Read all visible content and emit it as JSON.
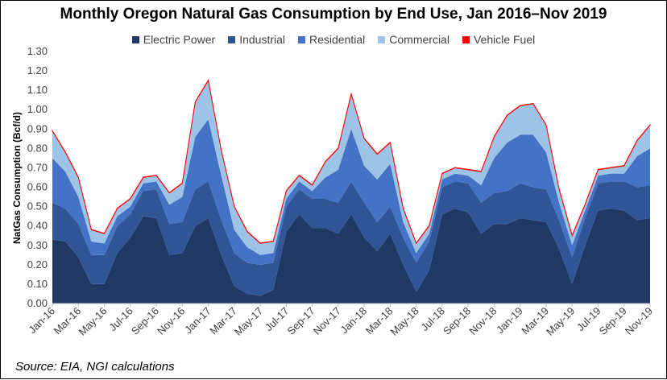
{
  "chart_data": {
    "type": "area",
    "stacked": true,
    "title": "Monthly Oregon Natural Gas Consumption by End Use, Jan 2016–Nov 2019",
    "ylabel": "NatGas Consumption (Bcf/d)",
    "xlabel": "",
    "ylim": [
      0,
      1.3
    ],
    "y_ticks": [
      "0.00",
      "0.10",
      "0.20",
      "0.30",
      "0.40",
      "0.50",
      "0.60",
      "0.70",
      "0.80",
      "0.90",
      "1.00",
      "1.10",
      "1.20",
      "1.30"
    ],
    "legend_position": "top",
    "grid": false,
    "x": [
      "Jan-16",
      "Feb-16",
      "Mar-16",
      "Apr-16",
      "May-16",
      "Jun-16",
      "Jul-16",
      "Aug-16",
      "Sep-16",
      "Oct-16",
      "Nov-16",
      "Dec-16",
      "Jan-17",
      "Feb-17",
      "Mar-17",
      "Apr-17",
      "May-17",
      "Jun-17",
      "Jul-17",
      "Aug-17",
      "Sep-17",
      "Oct-17",
      "Nov-17",
      "Dec-17",
      "Jan-18",
      "Feb-18",
      "Mar-18",
      "Apr-18",
      "May-18",
      "Jun-18",
      "Jul-18",
      "Aug-18",
      "Sep-18",
      "Oct-18",
      "Nov-18",
      "Dec-18",
      "Jan-19",
      "Feb-19",
      "Mar-19",
      "Apr-19",
      "May-19",
      "Jun-19",
      "Jul-19",
      "Aug-19",
      "Sep-19",
      "Oct-19",
      "Nov-19"
    ],
    "x_tick_labels": [
      "Jan-16",
      "Mar-16",
      "May-16",
      "Jul-16",
      "Sep-16",
      "Nov-16",
      "Jan-17",
      "Mar-17",
      "May-17",
      "Jul-17",
      "Sep-17",
      "Nov-17",
      "Jan-18",
      "Mar-18",
      "May-18",
      "Jul-18",
      "Sep-18",
      "Nov-18",
      "Jan-19",
      "Mar-19",
      "May-19",
      "Jul-19",
      "Sep-19",
      "Nov-19"
    ],
    "series": [
      {
        "name": "Electric Power",
        "color": "#1f3864",
        "values": [
          0.33,
          0.32,
          0.24,
          0.1,
          0.1,
          0.26,
          0.34,
          0.45,
          0.44,
          0.25,
          0.26,
          0.4,
          0.44,
          0.25,
          0.09,
          0.05,
          0.04,
          0.07,
          0.37,
          0.46,
          0.39,
          0.39,
          0.36,
          0.46,
          0.34,
          0.27,
          0.36,
          0.2,
          0.06,
          0.17,
          0.46,
          0.49,
          0.47,
          0.36,
          0.41,
          0.41,
          0.44,
          0.43,
          0.42,
          0.28,
          0.1,
          0.3,
          0.48,
          0.49,
          0.48,
          0.43,
          0.44
        ]
      },
      {
        "name": "Industrial",
        "color": "#2f5597",
        "values": [
          0.19,
          0.17,
          0.17,
          0.15,
          0.15,
          0.14,
          0.12,
          0.13,
          0.15,
          0.16,
          0.16,
          0.19,
          0.19,
          0.18,
          0.17,
          0.16,
          0.16,
          0.14,
          0.13,
          0.13,
          0.15,
          0.15,
          0.16,
          0.17,
          0.18,
          0.15,
          0.14,
          0.14,
          0.15,
          0.15,
          0.14,
          0.14,
          0.15,
          0.16,
          0.16,
          0.17,
          0.18,
          0.17,
          0.17,
          0.15,
          0.14,
          0.14,
          0.14,
          0.14,
          0.15,
          0.17,
          0.17
        ]
      },
      {
        "name": "Residential",
        "color": "#4472c4",
        "values": [
          0.23,
          0.19,
          0.14,
          0.07,
          0.06,
          0.05,
          0.04,
          0.04,
          0.04,
          0.1,
          0.13,
          0.27,
          0.32,
          0.23,
          0.12,
          0.08,
          0.05,
          0.05,
          0.04,
          0.04,
          0.04,
          0.11,
          0.17,
          0.27,
          0.19,
          0.22,
          0.22,
          0.08,
          0.05,
          0.04,
          0.04,
          0.04,
          0.04,
          0.09,
          0.18,
          0.25,
          0.25,
          0.27,
          0.19,
          0.09,
          0.06,
          0.04,
          0.04,
          0.04,
          0.04,
          0.16,
          0.19
        ]
      },
      {
        "name": "Commercial",
        "color": "#9dc3e6",
        "values": [
          0.14,
          0.1,
          0.1,
          0.06,
          0.05,
          0.04,
          0.04,
          0.03,
          0.03,
          0.06,
          0.07,
          0.18,
          0.2,
          0.13,
          0.12,
          0.08,
          0.06,
          0.06,
          0.04,
          0.03,
          0.03,
          0.08,
          0.11,
          0.18,
          0.14,
          0.13,
          0.11,
          0.07,
          0.05,
          0.04,
          0.03,
          0.03,
          0.03,
          0.07,
          0.11,
          0.14,
          0.15,
          0.16,
          0.14,
          0.07,
          0.05,
          0.03,
          0.03,
          0.03,
          0.04,
          0.08,
          0.12
        ]
      },
      {
        "name": "Vehicle Fuel",
        "color": "#ff0000",
        "values": [
          0.002,
          0.002,
          0.002,
          0.002,
          0.002,
          0.002,
          0.002,
          0.002,
          0.002,
          0.002,
          0.002,
          0.002,
          0.002,
          0.002,
          0.002,
          0.002,
          0.002,
          0.002,
          0.002,
          0.002,
          0.002,
          0.002,
          0.002,
          0.002,
          0.002,
          0.002,
          0.002,
          0.002,
          0.002,
          0.002,
          0.002,
          0.002,
          0.002,
          0.002,
          0.002,
          0.002,
          0.002,
          0.002,
          0.002,
          0.002,
          0.002,
          0.002,
          0.002,
          0.002,
          0.002,
          0.002,
          0.002
        ]
      }
    ]
  },
  "source": "Source: EIA, NGI calculations"
}
